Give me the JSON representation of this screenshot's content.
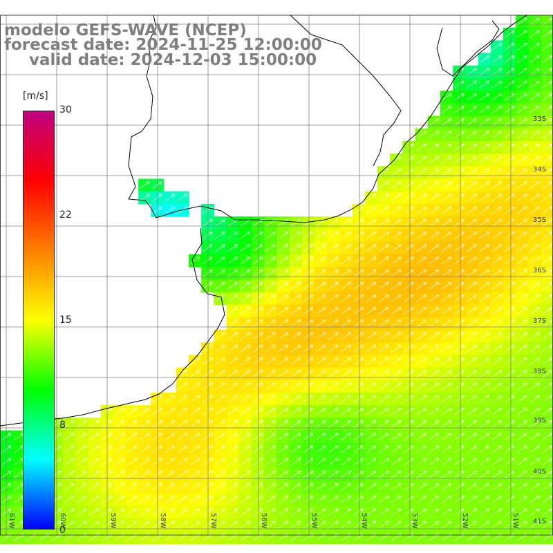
{
  "title": {
    "line1": "modelo GEFS-WAVE (NCEP)",
    "line2": "forecast date: 2024-11-25 12:00:00",
    "line3": "valid date: 2024-12-03 15:00:00"
  },
  "colorbar": {
    "unit": "[m/s]",
    "tick_labels": [
      "30",
      "22",
      "15",
      "8",
      "0"
    ],
    "min": 0,
    "max": 30,
    "colors": [
      "#0000ff",
      "#00ffff",
      "#00ff00",
      "#ffff00",
      "#ff8000",
      "#ff0000",
      "#c00080"
    ]
  },
  "axes": {
    "lat_labels": [
      "33S",
      "34S",
      "35S",
      "36S",
      "37S",
      "38S",
      "39S",
      "40S",
      "41S"
    ],
    "lon_labels": [
      "61W",
      "60W",
      "59W",
      "58W",
      "57W",
      "56W",
      "55W",
      "54W",
      "53W",
      "52W",
      "51W"
    ]
  },
  "colors": {
    "land": "#ffffff",
    "grid": "#808080",
    "coast": "#000000",
    "arrow": "#ffffff",
    "title": "#7f7f7f"
  },
  "field": {
    "variable": "wind speed",
    "arrow_direction": "toward north-east"
  }
}
